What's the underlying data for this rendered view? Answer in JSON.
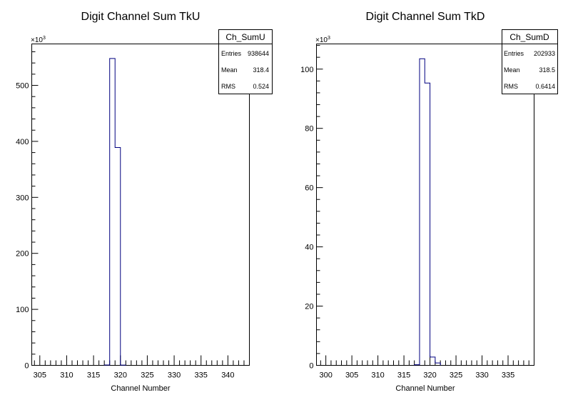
{
  "chart_data": [
    {
      "type": "histogram",
      "title": "Digit Channel Sum TkU",
      "xlabel": "Channel Number",
      "ylabel": "",
      "y_multiplier_label": "×10",
      "y_multiplier_exponent": "3",
      "xlim": [
        303.5,
        344
      ],
      "ylim": [
        0,
        574
      ],
      "x_ticks": [
        305,
        310,
        315,
        320,
        325,
        330,
        335,
        340
      ],
      "y_ticks": [
        0,
        100,
        200,
        300,
        400,
        500
      ],
      "bins": [
        {
          "x0": 317,
          "x1": 318,
          "value": 0.6
        },
        {
          "x0": 318,
          "x1": 319,
          "value": 548
        },
        {
          "x0": 319,
          "x1": 320,
          "value": 389
        },
        {
          "x0": 320,
          "x1": 321,
          "value": 0.5
        }
      ],
      "line_color": "#000080",
      "stats": {
        "name": "Ch_SumU",
        "rows": [
          {
            "label": "Entries",
            "value": "938644"
          },
          {
            "label": "Mean",
            "value": "318.4"
          },
          {
            "label": "RMS",
            "value": "0.524"
          }
        ]
      }
    },
    {
      "type": "histogram",
      "title": "Digit Channel Sum TkD",
      "xlabel": "Channel Number",
      "ylabel": "",
      "y_multiplier_label": "×10",
      "y_multiplier_exponent": "3",
      "xlim": [
        298.2,
        340
      ],
      "ylim": [
        0,
        108.5
      ],
      "x_ticks": [
        300,
        305,
        310,
        315,
        320,
        325,
        330,
        335
      ],
      "y_ticks": [
        0,
        20,
        40,
        60,
        80,
        100
      ],
      "bins": [
        {
          "x0": 317,
          "x1": 318,
          "value": 0.2
        },
        {
          "x0": 318,
          "x1": 319,
          "value": 103.5
        },
        {
          "x0": 319,
          "x1": 320,
          "value": 95.3
        },
        {
          "x0": 320,
          "x1": 321,
          "value": 2.8
        },
        {
          "x0": 321,
          "x1": 322,
          "value": 0.8
        }
      ],
      "line_color": "#000080",
      "stats": {
        "name": "Ch_SumD",
        "rows": [
          {
            "label": "Entries",
            "value": "202933"
          },
          {
            "label": "Mean",
            "value": "318.5"
          },
          {
            "label": "RMS",
            "value": "0.6414"
          }
        ]
      }
    }
  ]
}
